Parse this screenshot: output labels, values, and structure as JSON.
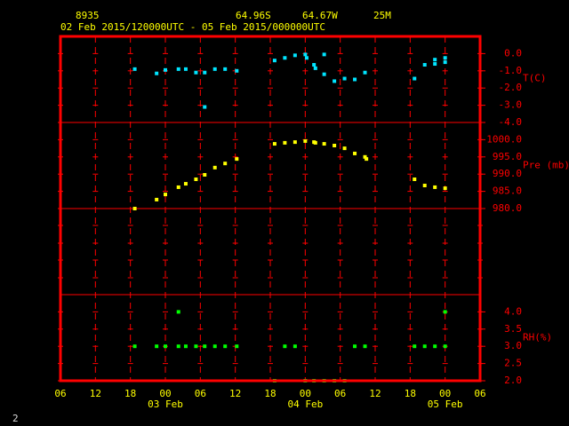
{
  "header": {
    "station": "8935",
    "lat": "64.96S",
    "lon": "64.67W",
    "elev": "25M",
    "period": "02 Feb 2015/120000UTC - 05 Feb 2015/000000UTC",
    "page": "2"
  },
  "chart_data": [
    {
      "type": "scatter",
      "ylabel": "T(C)",
      "color": "#00e5ff",
      "xlim": [
        0,
        72
      ],
      "ylim": [
        -4,
        1
      ],
      "yticks": [
        {
          "value": 0,
          "label": "0.0"
        },
        {
          "value": -1,
          "label": "-1.0"
        },
        {
          "value": -2,
          "label": "-2.0"
        },
        {
          "value": -3,
          "label": "-3.0"
        },
        {
          "value": -4,
          "label": "-4.0"
        }
      ],
      "x": [
        12.75,
        16.5,
        18,
        20.25,
        21.5,
        23.25,
        24.75,
        24.75,
        26.5,
        28.25,
        30.25,
        36.75,
        38.5,
        40.25,
        42,
        42.25,
        43.5,
        43.75,
        45.25,
        45.25,
        47,
        48.75,
        50.5,
        52.25,
        60.75,
        62.5,
        64.25,
        64.25,
        66,
        66
      ],
      "values": [
        -0.9,
        -1.15,
        -0.95,
        -0.9,
        -0.9,
        -1.1,
        -1.1,
        -3.1,
        -0.9,
        -0.9,
        -1.0,
        -0.4,
        -0.25,
        -0.1,
        -0.05,
        -0.25,
        -0.65,
        -0.85,
        -0.05,
        -1.2,
        -1.6,
        -1.45,
        -1.5,
        -1.1,
        -1.45,
        -0.65,
        -0.35,
        -0.6,
        -0.25,
        -0.5
      ]
    },
    {
      "type": "scatter",
      "ylabel": "Pre (mb)",
      "color": "#ffff00",
      "xlim": [
        0,
        72
      ],
      "ylim": [
        980,
        1005
      ],
      "yticks": [
        {
          "value": 1000,
          "label": "1000.0"
        },
        {
          "value": 995,
          "label": "995.0"
        },
        {
          "value": 990,
          "label": "990.0"
        },
        {
          "value": 985,
          "label": "985.0"
        },
        {
          "value": 980,
          "label": "980.0"
        }
      ],
      "x": [
        12.75,
        16.5,
        18,
        20.25,
        21.5,
        23.25,
        24.75,
        26.5,
        28.25,
        30.25,
        36.75,
        38.5,
        40.25,
        42,
        43.5,
        43.75,
        45.25,
        47,
        48.75,
        50.5,
        52.25,
        52.5,
        60.75,
        62.5,
        64.25,
        66
      ],
      "values": [
        980.0,
        982.6,
        984.1,
        986.2,
        987.2,
        988.5,
        989.8,
        991.9,
        993.1,
        994.4,
        998.8,
        999.1,
        999.3,
        999.6,
        999.3,
        999.1,
        998.8,
        998.3,
        997.5,
        996.0,
        995.0,
        994.4,
        988.5,
        986.7,
        986.2,
        985.9
      ]
    },
    {
      "type": "scatter",
      "ylabel": "RH(%)",
      "color": "#00ff00",
      "xlim": [
        0,
        72
      ],
      "ylim": [
        2,
        4.5
      ],
      "yticks": [
        {
          "value": 4,
          "label": "4.0"
        },
        {
          "value": 3.5,
          "label": "3.5"
        },
        {
          "value": 3,
          "label": "3.0"
        },
        {
          "value": 2.5,
          "label": "2.5"
        },
        {
          "value": 2,
          "label": "2.0"
        }
      ],
      "xticks": [
        {
          "value": 0,
          "label": "06"
        },
        {
          "value": 6,
          "label": "12"
        },
        {
          "value": 12,
          "label": "18"
        },
        {
          "value": 18,
          "label": "00"
        },
        {
          "value": 24,
          "label": "06"
        },
        {
          "value": 30,
          "label": "12"
        },
        {
          "value": 36,
          "label": "18"
        },
        {
          "value": 42,
          "label": "00"
        },
        {
          "value": 48,
          "label": "06"
        },
        {
          "value": 54,
          "label": "12"
        },
        {
          "value": 60,
          "label": "18"
        },
        {
          "value": 66,
          "label": "00"
        },
        {
          "value": 72,
          "label": "06"
        }
      ],
      "date_labels": [
        {
          "value": 18,
          "label": "03 Feb"
        },
        {
          "value": 42,
          "label": "04 Feb"
        },
        {
          "value": 66,
          "label": "05 Feb"
        }
      ],
      "x": [
        12.75,
        16.5,
        18,
        20.25,
        21.5,
        23.25,
        24.75,
        26.5,
        28.25,
        30.25,
        38.5,
        40.25,
        50.5,
        52.25,
        60.75,
        62.5,
        64.25,
        66,
        20.25,
        66,
        36.75,
        42,
        43.5,
        45.25,
        47,
        48.75
      ],
      "values": [
        3,
        3,
        3,
        3,
        3,
        3,
        3,
        3,
        3,
        3,
        3,
        3,
        3,
        3,
        3,
        3,
        3,
        3,
        4,
        4,
        2,
        2,
        2,
        2,
        2,
        2
      ]
    }
  ]
}
